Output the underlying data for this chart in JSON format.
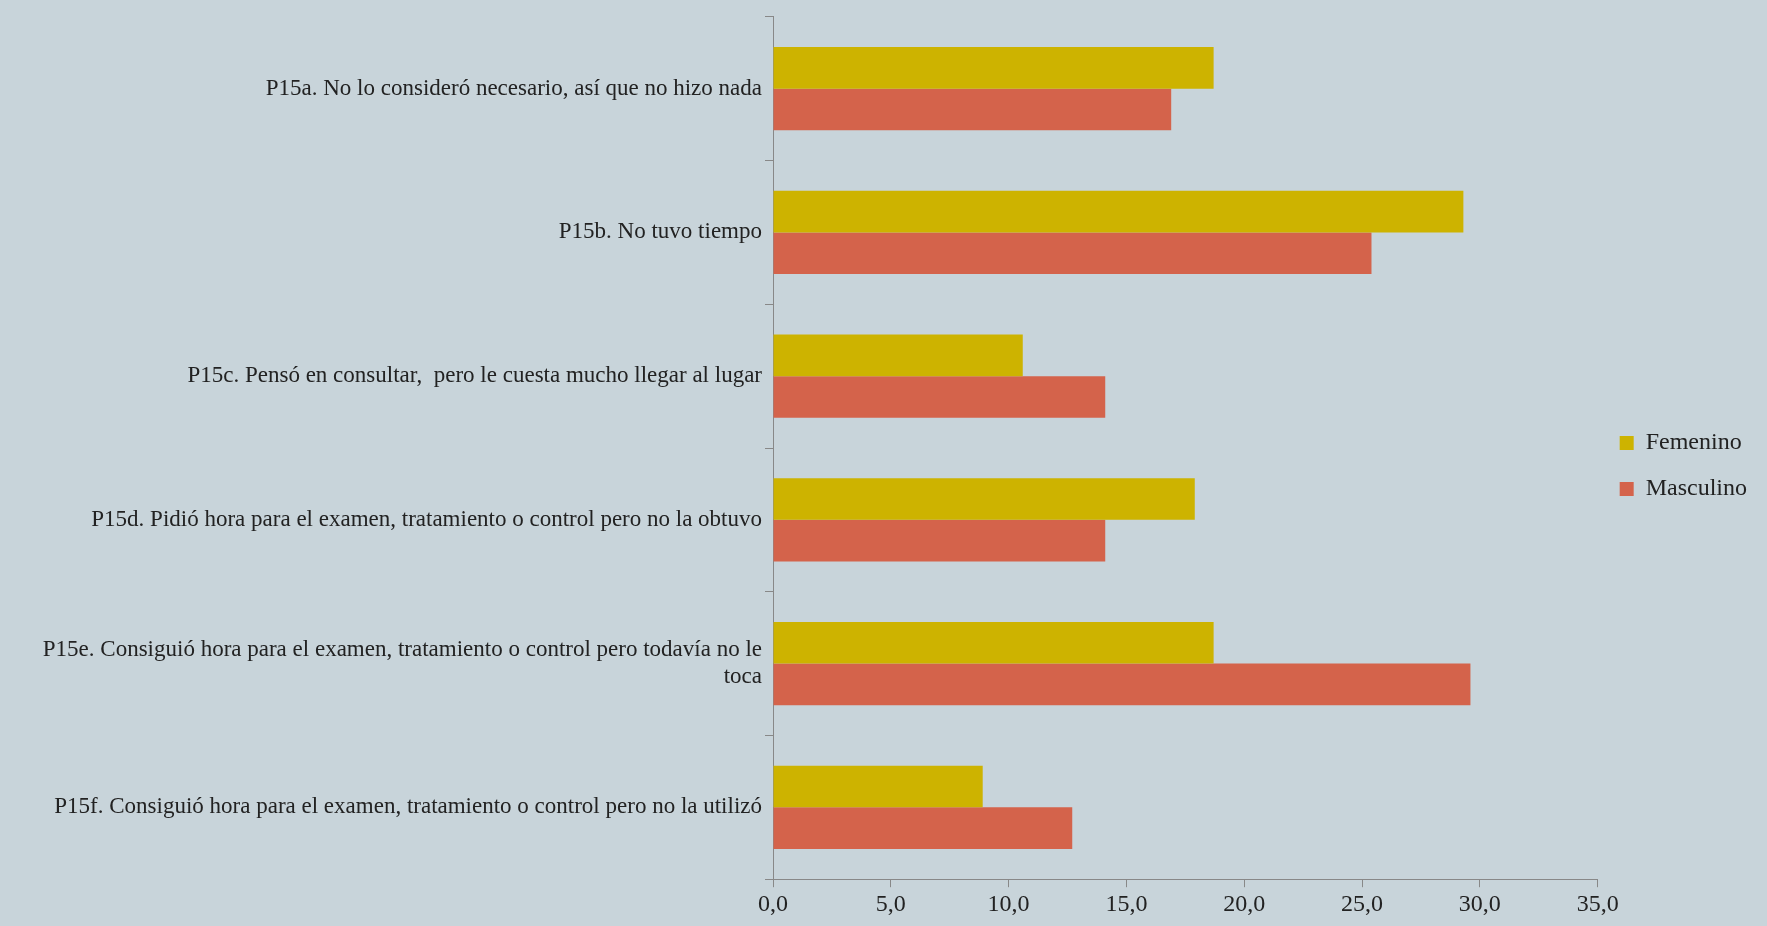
{
  "chart_data": {
    "type": "bar",
    "orientation": "horizontal",
    "categories": [
      "P15a. No lo consideró necesario, así que no hizo nada",
      "P15b. No tuvo tiempo",
      "P15c. Pensó en consultar,  pero le cuesta mucho llegar al lugar",
      "P15d. Pidió hora para el examen, tratamiento o control pero no la obtuvo",
      "P15e. Consiguió hora para el examen, tratamiento o control pero todavía no le toca",
      "P15f. Consiguió hora para el examen, tratamiento o control pero no la utilizó"
    ],
    "series": [
      {
        "name": "Femenino",
        "color": "#cdb300",
        "values": [
          18.7,
          29.3,
          10.6,
          17.9,
          18.7,
          8.9
        ]
      },
      {
        "name": "Masculino",
        "color": "#d4634b",
        "values": [
          16.9,
          25.4,
          14.1,
          14.1,
          29.6,
          12.7
        ]
      }
    ],
    "xlim": [
      0,
      35
    ],
    "xticks": [
      {
        "value": 0,
        "label": "0,0"
      },
      {
        "value": 5,
        "label": "5,0"
      },
      {
        "value": 10,
        "label": "10,0"
      },
      {
        "value": 15,
        "label": "15,0"
      },
      {
        "value": 20,
        "label": "20,0"
      },
      {
        "value": 25,
        "label": "25,0"
      },
      {
        "value": 30,
        "label": "30,0"
      },
      {
        "value": 35,
        "label": "35,0"
      }
    ],
    "grid": false,
    "legend": "right"
  }
}
